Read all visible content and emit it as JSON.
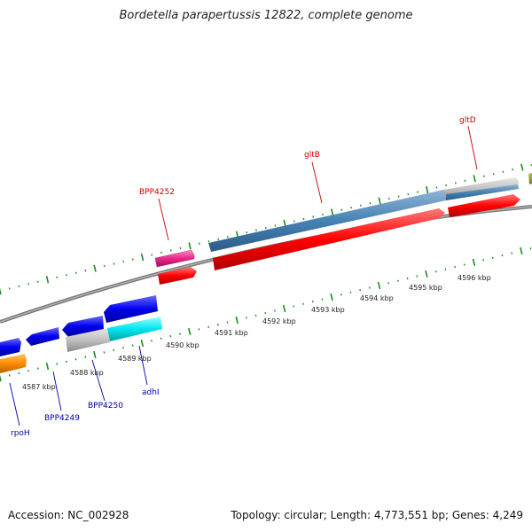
{
  "title": "Bordetella parapertussis 12822, complete genome",
  "footer": {
    "accession": "Accession: NC_002928",
    "summary": "Topology: circular; Length: 4,773,551 bp; Genes: 4,249"
  },
  "tick_labels": [
    "4587 kbp",
    "4588 kbp",
    "4589 kbp",
    "4590 kbp",
    "4591 kbp",
    "4592 kbp",
    "4593 kbp",
    "4594 kbp",
    "4595 kbp",
    "4596 kbp"
  ],
  "gene_labels": {
    "top": [
      "BPP4252",
      "gltB",
      "gltD"
    ],
    "bottom": [
      "rpoH",
      "BPP4249",
      "BPP4250",
      "adhI"
    ]
  },
  "colors": {
    "label_top": "#cc0000",
    "label_bottom": "#0000aa",
    "strand_blue": "#0000ee",
    "strand_red": "#ff0000",
    "steel_blue": "#4682b4",
    "magenta": "#e8288c",
    "orange": "#ff8c00",
    "cyan": "#00e5ee",
    "gray": "#c0c0c0",
    "backbone": "#808080",
    "tick_green": "#1e8c1e"
  }
}
